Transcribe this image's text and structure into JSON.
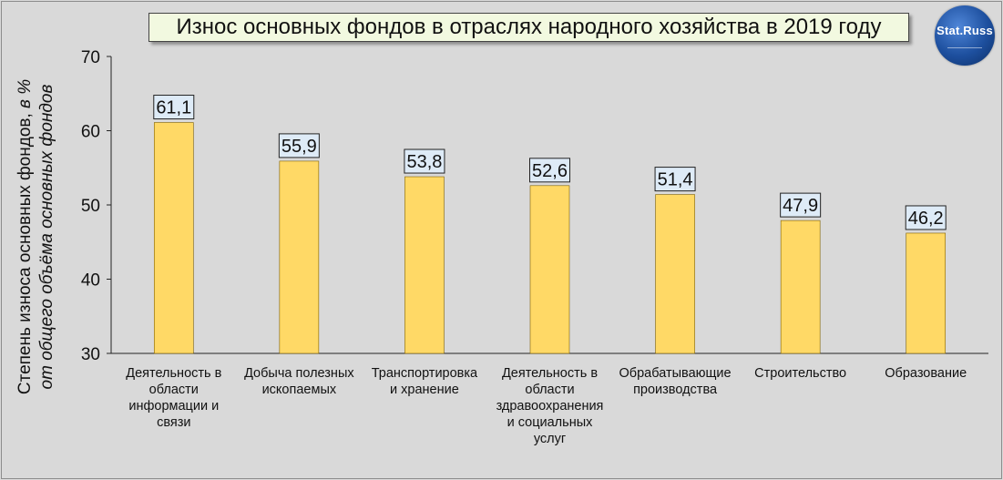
{
  "chart_data": {
    "type": "bar",
    "title": "Износ основных фондов в отраслях народного хозяйства в 2019 году",
    "ylabel_line1": "Степень износа основных фондов,",
    "ylabel_line1_italic": "в %",
    "ylabel_line2": "от общего объёма основных фондов",
    "xlabel": "",
    "ylim": [
      30,
      70
    ],
    "yticks": [
      30,
      40,
      50,
      60,
      70
    ],
    "grid": false,
    "categories": [
      [
        "Деятельность в",
        "области",
        "информации  и",
        "связи"
      ],
      [
        "Добыча полезных",
        "ископаемых"
      ],
      [
        "Транспортировка",
        "и хранение"
      ],
      [
        "Деятельность в",
        "области",
        "здравоохранения",
        "и социальных",
        "услуг"
      ],
      [
        "Обрабатывающие",
        "производства"
      ],
      [
        "Строительство"
      ],
      [
        "Образование"
      ]
    ],
    "values": [
      61.1,
      55.9,
      53.8,
      52.6,
      51.4,
      47.9,
      46.2
    ],
    "data_labels": [
      "61,1",
      "55,9",
      "53,8",
      "52,6",
      "51,4",
      "47,9",
      "46,2"
    ],
    "colors": {
      "bar": "#ffd966",
      "bar_border": "#7f6000",
      "label_bg": "#deebf7",
      "title_bg": "#f2f9e0",
      "background": "#d9d9d9"
    }
  },
  "logo": {
    "text": "Stat.Russ"
  }
}
